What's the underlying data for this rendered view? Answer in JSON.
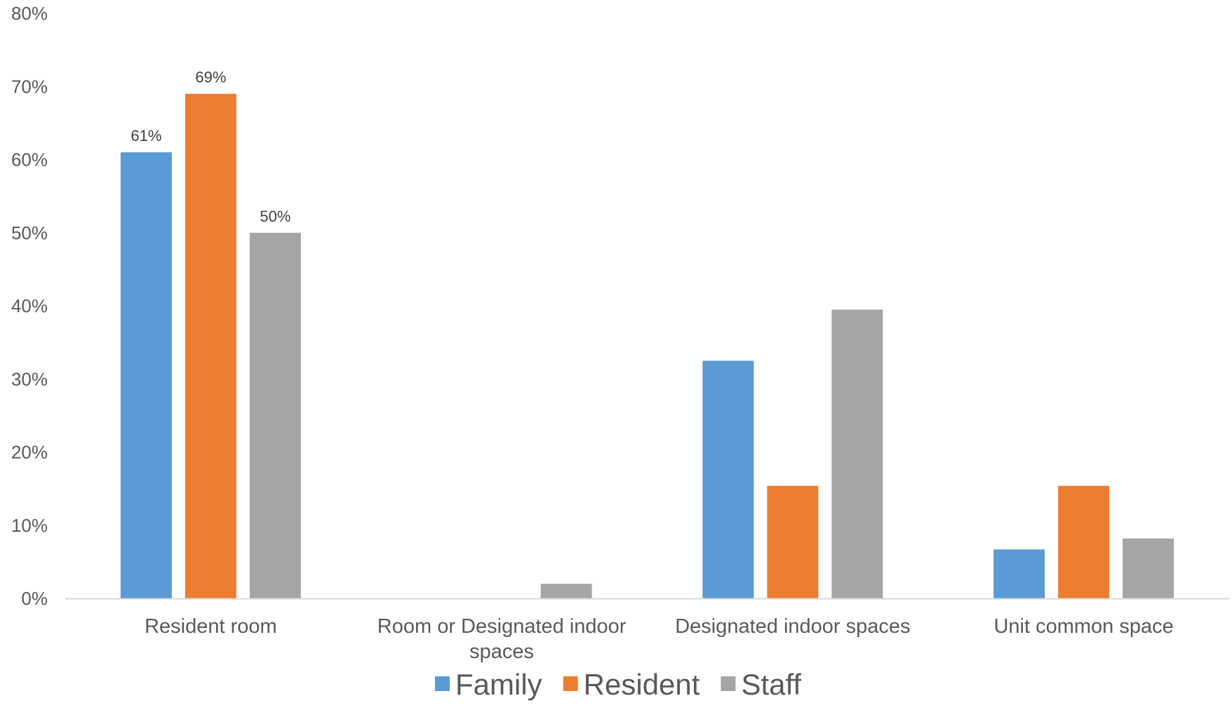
{
  "chart_data": {
    "type": "bar",
    "categories": [
      [
        "Resident room"
      ],
      [
        "Room or Designated indoor",
        "spaces"
      ],
      [
        "Designated indoor spaces"
      ],
      [
        "Unit common space"
      ]
    ],
    "series": [
      {
        "name": "Family",
        "color": "#5B9BD5",
        "values": [
          61,
          0,
          32.5,
          6.7
        ]
      },
      {
        "name": "Resident",
        "color": "#ED7D31",
        "values": [
          69,
          0,
          15.4,
          15.4
        ]
      },
      {
        "name": "Staff",
        "color": "#A5A5A5",
        "values": [
          50,
          2,
          39.5,
          8.2
        ]
      }
    ],
    "data_labels": [
      {
        "series": 0,
        "category": 0,
        "text": "61%"
      },
      {
        "series": 1,
        "category": 0,
        "text": "69%"
      },
      {
        "series": 2,
        "category": 0,
        "text": "50%"
      }
    ],
    "y_ticks": [
      "0%",
      "10%",
      "20%",
      "30%",
      "40%",
      "50%",
      "60%",
      "70%",
      "80%"
    ],
    "ylim": [
      0,
      80
    ],
    "y_step": 10,
    "grid": false,
    "legend_position": "bottom",
    "title": "",
    "xlabel": "",
    "ylabel": "",
    "axis_color": "#D9D9D9"
  }
}
